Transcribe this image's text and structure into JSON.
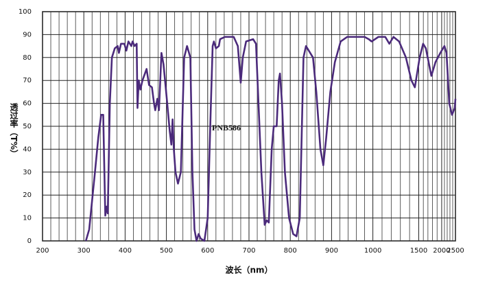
{
  "chart_data": {
    "type": "line",
    "title": "PNB586",
    "xlabel": "波长（nm）",
    "ylabel": "透过率（T%）",
    "xlim": [
      200,
      2500
    ],
    "ylim": [
      0,
      100
    ],
    "xticks": [
      200,
      300,
      400,
      500,
      600,
      700,
      800,
      900,
      1000,
      1500,
      2000,
      2500
    ],
    "yticks": [
      0,
      10,
      20,
      30,
      40,
      50,
      60,
      70,
      80,
      90,
      100
    ],
    "grid": true,
    "series": [
      {
        "name": "PNB586",
        "color": "#4b2a7b",
        "x": [
          305,
          313,
          327,
          335,
          342,
          347,
          352,
          355,
          358,
          363,
          368,
          375,
          382,
          385,
          390,
          398,
          403,
          408,
          415,
          418,
          423,
          428,
          430,
          433,
          437,
          442,
          452,
          458,
          465,
          470,
          473,
          478,
          482,
          488,
          493,
          502,
          508,
          512,
          515,
          518,
          522,
          528,
          535,
          543,
          550,
          558,
          563,
          568,
          573,
          578,
          583,
          592,
          600,
          607,
          612,
          615,
          620,
          627,
          630,
          642,
          663,
          673,
          680,
          685,
          693,
          710,
          717,
          723,
          730,
          738,
          743,
          748,
          755,
          760,
          767,
          772,
          775,
          780,
          787,
          797,
          807,
          815,
          823,
          832,
          838,
          855,
          863,
          873,
          880,
          887,
          897,
          908,
          922,
          938,
          980,
          990,
          997,
          1042,
          1099,
          1136,
          1176,
          1235,
          1316,
          1389,
          1439,
          1515,
          1575,
          1626,
          1739,
          1835,
          1961,
          2083,
          2151,
          2247,
          2353,
          2469,
          2500
        ],
        "values": [
          0,
          5,
          30,
          45,
          55,
          55,
          11,
          15,
          12,
          60,
          80,
          84,
          85,
          82,
          86,
          86,
          83,
          87,
          85,
          87,
          85,
          86,
          58,
          70,
          66,
          70,
          75,
          68,
          67,
          60,
          57,
          62,
          57,
          82,
          77,
          60,
          48,
          42,
          53,
          40,
          30,
          25,
          30,
          80,
          85,
          80,
          30,
          5,
          0,
          3,
          1,
          0,
          10,
          55,
          85,
          87,
          84,
          85,
          88,
          89,
          89,
          85,
          69,
          80,
          87,
          88,
          86,
          60,
          30,
          7,
          9,
          8,
          40,
          50,
          50,
          70,
          73,
          60,
          30,
          10,
          3,
          2,
          10,
          80,
          85,
          80,
          65,
          40,
          33,
          45,
          65,
          78,
          87,
          89,
          89,
          88,
          87,
          89,
          89,
          86,
          89,
          87,
          80,
          70,
          67,
          80,
          86,
          84,
          72,
          78,
          82,
          85,
          82,
          60,
          55,
          58,
          62
        ]
      }
    ]
  }
}
